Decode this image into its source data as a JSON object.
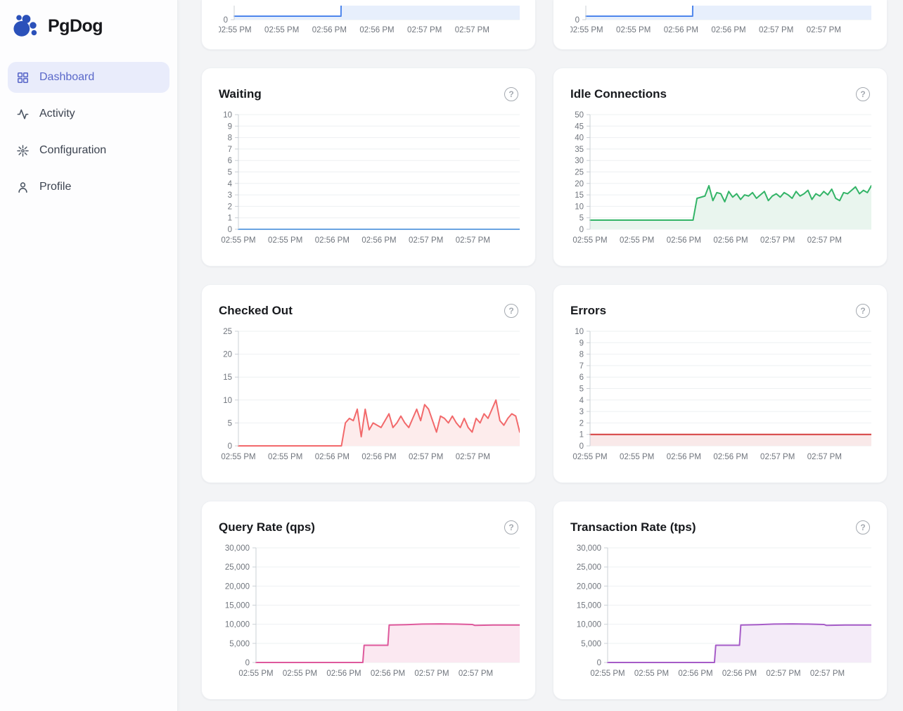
{
  "app": {
    "name": "PgDog"
  },
  "ui": {
    "help_glyph": "?"
  },
  "colors": {
    "accent_indigo": "#5a68c9",
    "active_item_bg": "#e9ecfb",
    "logo_blue": "#2b51ba",
    "page_bg": "#f3f4f6",
    "card_bg": "#ffffff"
  },
  "sidebar": {
    "items": [
      {
        "label": "Dashboard",
        "icon": "grid-icon",
        "active": true
      },
      {
        "label": "Activity",
        "icon": "activity-icon",
        "active": false
      },
      {
        "label": "Configuration",
        "icon": "burst-icon",
        "active": false
      },
      {
        "label": "Profile",
        "icon": "user-icon",
        "active": false
      }
    ]
  },
  "time_labels": [
    "02:55 PM",
    "02:55 PM",
    "02:56 PM",
    "02:56 PM",
    "02:57 PM",
    "02:57 PM"
  ],
  "chart_data": [
    {
      "type": "area",
      "title": "",
      "clipped": true,
      "color": "#4e86ec",
      "fill": "#e7effc",
      "y_max": 4,
      "y_ticks": [
        0
      ],
      "x_ticks": [
        "02:55 PM",
        "02:55 PM",
        "02:56 PM",
        "02:56 PM",
        "02:57 PM",
        "02:57 PM"
      ],
      "points": [
        [
          0,
          1
        ],
        [
          0.374,
          1
        ],
        [
          0.378,
          30
        ],
        [
          1,
          30
        ]
      ]
    },
    {
      "type": "area",
      "title": "",
      "clipped": true,
      "color": "#4e86ec",
      "fill": "#e7effc",
      "y_max": 4,
      "y_ticks": [
        0
      ],
      "x_ticks": [
        "02:55 PM",
        "02:55 PM",
        "02:56 PM",
        "02:56 PM",
        "02:57 PM",
        "02:57 PM"
      ],
      "points": [
        [
          0,
          1
        ],
        [
          0.374,
          1
        ],
        [
          0.378,
          30
        ],
        [
          1,
          30
        ]
      ]
    },
    {
      "type": "line",
      "title": "Waiting",
      "color": "#6aa4e2",
      "fill": "none",
      "y_max": 10,
      "y_ticks": [
        10,
        9,
        8,
        7,
        6,
        5,
        4,
        3,
        2,
        1,
        0
      ],
      "x_ticks": [
        "02:55 PM",
        "02:55 PM",
        "02:56 PM",
        "02:56 PM",
        "02:57 PM",
        "02:57 PM"
      ],
      "points": [
        [
          0,
          0
        ],
        [
          1,
          0
        ]
      ]
    },
    {
      "type": "area",
      "title": "Idle Connections",
      "color": "#33b467",
      "fill": "#e9f5ee",
      "y_max": 50,
      "y_ticks": [
        50,
        45,
        40,
        35,
        30,
        25,
        20,
        15,
        10,
        5,
        0
      ],
      "x_ticks": [
        "02:55 PM",
        "02:55 PM",
        "02:56 PM",
        "02:56 PM",
        "02:57 PM",
        "02:57 PM"
      ],
      "values": [
        4,
        4,
        4,
        4,
        4,
        4,
        4,
        4,
        4,
        4,
        4,
        4,
        4,
        4,
        4,
        4,
        4,
        4,
        4,
        4,
        4,
        4,
        4,
        4,
        4,
        4,
        4,
        13.5,
        14,
        14.5,
        19,
        12.5,
        16,
        15.5,
        12,
        16.5,
        14,
        15.5,
        13,
        15,
        14.5,
        16,
        13.5,
        15,
        16.5,
        12.5,
        14.5,
        15.5,
        14,
        16,
        15,
        13.5,
        16.5,
        14.5,
        15.5,
        17,
        13,
        15.5,
        14.5,
        16.5,
        15,
        17.5,
        13.5,
        12.5,
        16,
        15.5,
        17,
        18.5,
        15.5,
        17,
        16,
        19
      ]
    },
    {
      "type": "area",
      "title": "Checked Out",
      "color": "#f2696b",
      "fill": "#fdecec",
      "y_max": 25,
      "y_ticks": [
        25,
        20,
        15,
        10,
        5,
        0
      ],
      "x_ticks": [
        "02:55 PM",
        "02:55 PM",
        "02:56 PM",
        "02:56 PM",
        "02:57 PM",
        "02:57 PM"
      ],
      "values": [
        0,
        0,
        0,
        0,
        0,
        0,
        0,
        0,
        0,
        0,
        0,
        0,
        0,
        0,
        0,
        0,
        0,
        0,
        0,
        0,
        0,
        0,
        0,
        0,
        0,
        0,
        0,
        5,
        6,
        5.5,
        8,
        2,
        8,
        3.5,
        5,
        4.5,
        4,
        5.5,
        7,
        4,
        5,
        6.5,
        5,
        4,
        6,
        8,
        5.5,
        9,
        8,
        5.5,
        3,
        6.5,
        6,
        5,
        6.5,
        5,
        4,
        6,
        4,
        3,
        6,
        5,
        7,
        6,
        8,
        10,
        5.5,
        4.5,
        6,
        7,
        6.5,
        3
      ]
    },
    {
      "type": "area",
      "title": "Errors",
      "color": "#d63f3f",
      "fill": "#f9e9e9",
      "y_max": 10,
      "y_ticks": [
        10,
        9,
        8,
        7,
        6,
        5,
        4,
        3,
        2,
        1,
        0
      ],
      "x_ticks": [
        "02:55 PM",
        "02:55 PM",
        "02:56 PM",
        "02:56 PM",
        "02:57 PM",
        "02:57 PM"
      ],
      "points": [
        [
          0,
          1
        ],
        [
          1,
          1
        ]
      ]
    },
    {
      "type": "area",
      "title": "Query Rate (qps)",
      "color": "#de599c",
      "fill": "#fbe8f1",
      "y_max": 30000,
      "y_ticks": [
        30000,
        25000,
        20000,
        15000,
        10000,
        5000,
        0
      ],
      "x_ticks": [
        "02:55 PM",
        "02:55 PM",
        "02:56 PM",
        "02:56 PM",
        "02:57 PM",
        "02:57 PM"
      ],
      "points": [
        [
          0,
          0
        ],
        [
          0.405,
          0
        ],
        [
          0.41,
          4500
        ],
        [
          0.5,
          4500
        ],
        [
          0.505,
          9800
        ],
        [
          0.57,
          9900
        ],
        [
          0.63,
          10050
        ],
        [
          0.7,
          10100
        ],
        [
          0.76,
          10050
        ],
        [
          0.82,
          9950
        ],
        [
          0.83,
          9700
        ],
        [
          0.9,
          9800
        ],
        [
          1,
          9800
        ]
      ]
    },
    {
      "type": "area",
      "title": "Transaction Rate (tps)",
      "color": "#a65cc8",
      "fill": "#f4ebf8",
      "y_max": 30000,
      "y_ticks": [
        30000,
        25000,
        20000,
        15000,
        10000,
        5000,
        0
      ],
      "x_ticks": [
        "02:55 PM",
        "02:55 PM",
        "02:56 PM",
        "02:56 PM",
        "02:57 PM",
        "02:57 PM"
      ],
      "points": [
        [
          0,
          0
        ],
        [
          0.405,
          0
        ],
        [
          0.41,
          4500
        ],
        [
          0.5,
          4500
        ],
        [
          0.505,
          9800
        ],
        [
          0.57,
          9900
        ],
        [
          0.63,
          10050
        ],
        [
          0.7,
          10100
        ],
        [
          0.76,
          10050
        ],
        [
          0.82,
          9950
        ],
        [
          0.83,
          9700
        ],
        [
          0.9,
          9800
        ],
        [
          1,
          9800
        ]
      ]
    }
  ]
}
